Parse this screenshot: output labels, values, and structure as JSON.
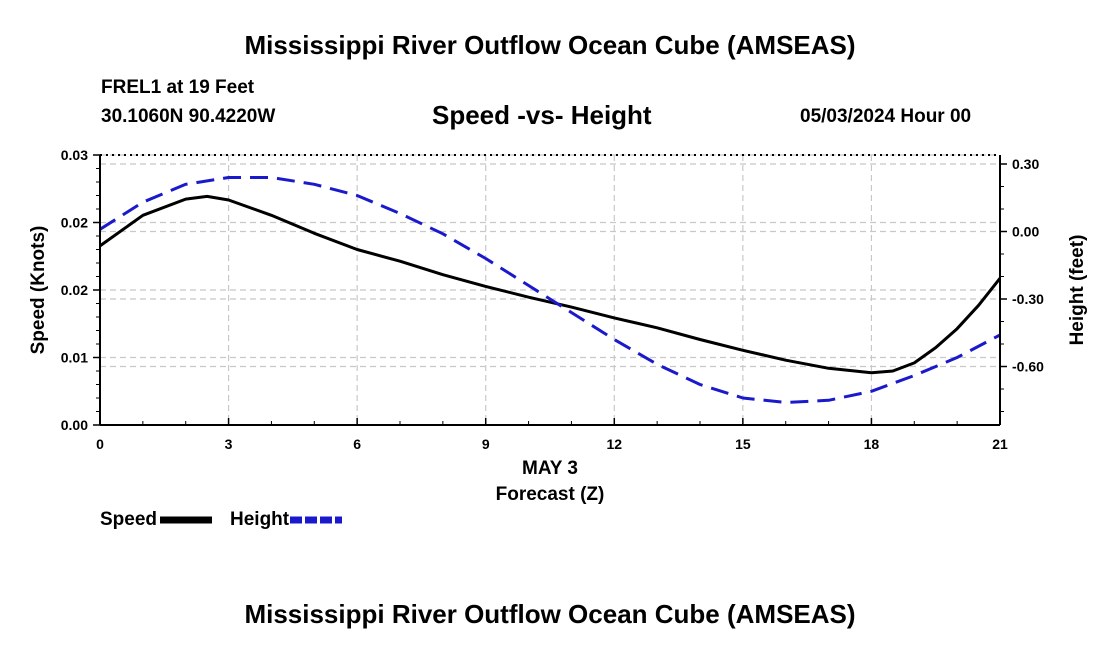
{
  "header": {
    "title": "Mississippi River Outflow Ocean Cube (AMSEAS)",
    "station": "FREL1 at 19 Feet",
    "coordinates": "30.1060N  90.4220W",
    "run_time": "05/03/2024 Hour 00"
  },
  "footer": {
    "title": "Mississippi River Outflow Ocean Cube (AMSEAS)"
  },
  "chart_data": {
    "type": "line",
    "title": "Speed -vs- Height",
    "xlabel": "Forecast (Z)",
    "xlabel_date": "MAY 3",
    "ylabel_left": "Speed (Knots)",
    "ylabel_right": "Height (feet)",
    "xlim": [
      0,
      21
    ],
    "ylim_left": [
      0,
      0.03
    ],
    "ylim_right": [
      -0.86,
      0.34
    ],
    "x_ticks": [
      0,
      3,
      6,
      9,
      12,
      15,
      18,
      21
    ],
    "x_tick_labels": [
      "0",
      "3",
      "6",
      "9",
      "12",
      "15",
      "18",
      "21"
    ],
    "y_left_ticks": [
      0,
      0.0075,
      0.015,
      0.0225,
      0.03
    ],
    "y_left_tick_labels": [
      "0.00",
      "0.01",
      "0.02",
      "0.02",
      "0.03"
    ],
    "y_right_ticks": [
      0.3,
      0.0,
      -0.3,
      -0.6
    ],
    "y_right_tick_labels": [
      "0.30",
      "0.00",
      "-0.30",
      "-0.60"
    ],
    "grid": true,
    "series": [
      {
        "name": "Speed",
        "axis": "left",
        "color": "#000000",
        "dash": "solid",
        "x": [
          0,
          1,
          2,
          2.5,
          3,
          4,
          5,
          6,
          7,
          8,
          9,
          10,
          11,
          12,
          13,
          14,
          15,
          16,
          17,
          18,
          18.5,
          19,
          19.5,
          20,
          20.5,
          21
        ],
        "y": [
          0.0199,
          0.0233,
          0.0251,
          0.0254,
          0.025,
          0.0233,
          0.0213,
          0.0195,
          0.0182,
          0.0167,
          0.0154,
          0.0142,
          0.0131,
          0.0119,
          0.0108,
          0.0095,
          0.0083,
          0.0072,
          0.0063,
          0.0058,
          0.006,
          0.0069,
          0.0086,
          0.0107,
          0.0133,
          0.0163
        ]
      },
      {
        "name": "Height",
        "axis": "right",
        "color": "#1a1acc",
        "dash": "dashed",
        "x": [
          0,
          1,
          2,
          3,
          4,
          5,
          6,
          7,
          8,
          9,
          10,
          11,
          12,
          13,
          14,
          15,
          16,
          17,
          18,
          19,
          20,
          21
        ],
        "y": [
          0.01,
          0.13,
          0.21,
          0.24,
          0.24,
          0.21,
          0.16,
          0.08,
          -0.01,
          -0.12,
          -0.24,
          -0.36,
          -0.48,
          -0.59,
          -0.68,
          -0.74,
          -0.76,
          -0.75,
          -0.71,
          -0.64,
          -0.56,
          -0.46
        ]
      }
    ],
    "legend": {
      "placement": "bottom-left",
      "entries": [
        "Speed",
        "Height"
      ]
    }
  }
}
